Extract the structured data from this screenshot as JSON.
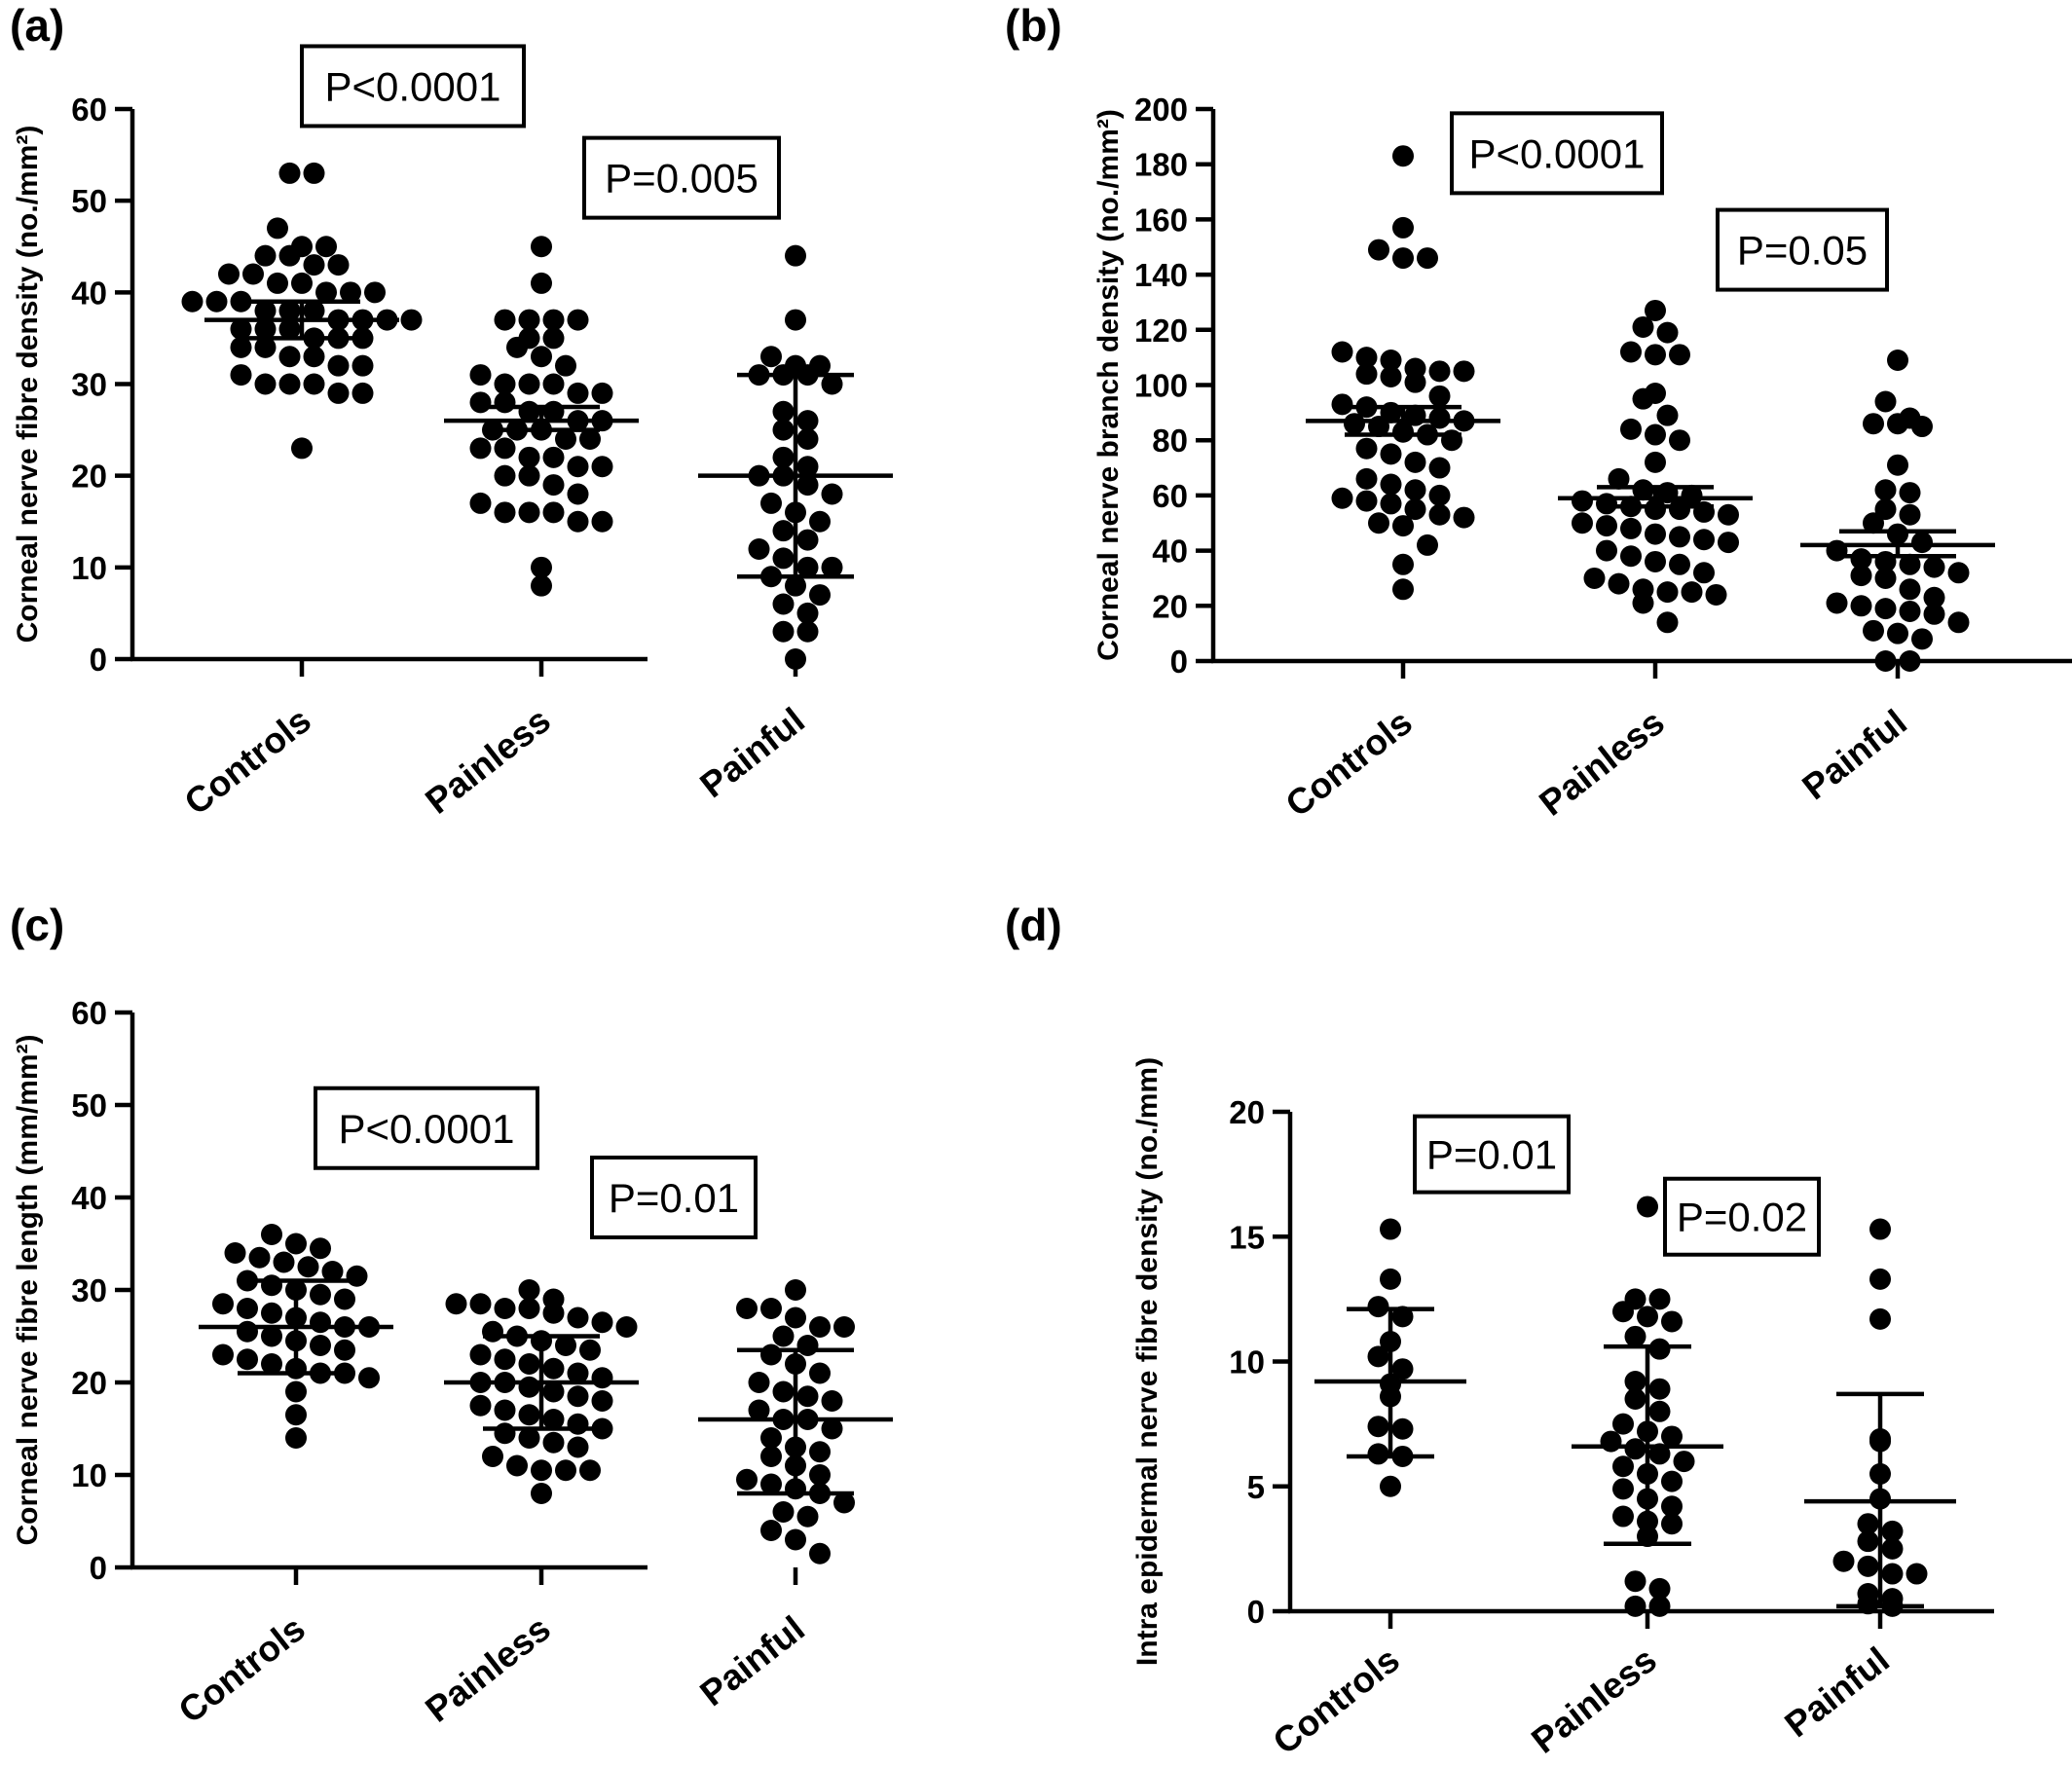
{
  "chart_data": [
    {
      "type": "scatter",
      "panel": "(a)",
      "ylabel": "Corneal nerve fibre density (no./mm²)",
      "ylim": [
        0,
        60
      ],
      "yticks": [
        0,
        10,
        20,
        30,
        40,
        50,
        60
      ],
      "categories": [
        "Controls",
        "Painless",
        "Painful"
      ],
      "series": [
        {
          "category": "Controls",
          "mean": 37,
          "err_low": 35,
          "err_high": 39,
          "values": [
            53,
            53,
            47,
            45,
            45,
            44,
            44,
            43,
            43,
            42,
            42,
            41,
            41,
            40,
            40,
            40,
            39,
            39,
            39,
            38,
            38,
            38,
            37,
            37,
            37,
            37,
            36,
            36,
            36,
            35,
            35,
            35,
            34,
            34,
            33,
            33,
            32,
            32,
            31,
            30,
            30,
            30,
            29,
            29,
            23
          ]
        },
        {
          "category": "Painless",
          "mean": 26,
          "err_low": 25,
          "err_high": 27.5,
          "values": [
            45,
            41,
            37,
            37,
            37,
            37,
            35,
            35,
            34,
            33,
            32,
            31,
            30,
            30,
            30,
            29,
            29,
            28,
            28,
            27,
            27,
            26,
            26,
            25,
            25,
            25,
            24,
            24,
            23,
            23,
            22,
            22,
            21,
            21,
            20,
            20,
            19,
            18,
            17,
            16,
            16,
            16,
            15,
            15,
            10,
            8
          ]
        },
        {
          "category": "Painful",
          "mean": 20,
          "err_low": 9,
          "err_high": 31,
          "values": [
            44,
            37,
            33,
            32,
            32,
            31,
            31,
            31,
            30,
            27,
            26,
            25,
            24,
            22,
            21,
            20,
            20,
            19,
            18,
            17,
            16,
            15,
            14,
            13,
            12,
            11,
            10,
            10,
            9,
            8,
            7,
            6,
            5,
            3,
            3,
            0
          ]
        }
      ],
      "annotations": [
        {
          "text": "P<0.0001",
          "y": 62.5
        },
        {
          "text": "P=0.005",
          "y": 52.5
        }
      ]
    },
    {
      "type": "scatter",
      "panel": "(b)",
      "ylabel": "Corneal nerve branch density (no./mm²)",
      "ylim": [
        0,
        200
      ],
      "yticks": [
        0,
        20,
        40,
        60,
        80,
        100,
        120,
        140,
        160,
        180,
        200
      ],
      "categories": [
        "Controls",
        "Painless",
        "Painful"
      ],
      "series": [
        {
          "category": "Controls",
          "mean": 87,
          "err_low": 82,
          "err_high": 92,
          "values": [
            183,
            157,
            149,
            146,
            146,
            112,
            110,
            109,
            106,
            105,
            105,
            104,
            103,
            101,
            96,
            93,
            92,
            90,
            89,
            88,
            87,
            86,
            85,
            83,
            82,
            80,
            77,
            75,
            72,
            70,
            66,
            64,
            62,
            60,
            59,
            58,
            57,
            55,
            53,
            52,
            50,
            49,
            42,
            35,
            26
          ]
        },
        {
          "category": "Painless",
          "mean": 59,
          "err_low": 56,
          "err_high": 63,
          "values": [
            127,
            121,
            119,
            112,
            111,
            111,
            97,
            95,
            89,
            84,
            82,
            80,
            72,
            66,
            62,
            61,
            60,
            58,
            57,
            56,
            55,
            55,
            54,
            53,
            50,
            49,
            48,
            46,
            45,
            44,
            43,
            40,
            38,
            36,
            35,
            32,
            30,
            28,
            26,
            25,
            25,
            24,
            21,
            14
          ]
        },
        {
          "category": "Painful",
          "mean": 42,
          "err_low": 38,
          "err_high": 47,
          "values": [
            109,
            94,
            88,
            86,
            86,
            85,
            71,
            62,
            61,
            55,
            53,
            50,
            46,
            43,
            40,
            37,
            36,
            35,
            34,
            32,
            31,
            30,
            26,
            23,
            21,
            20,
            19,
            18,
            17,
            14,
            11,
            10,
            8,
            0,
            0
          ]
        }
      ],
      "annotations": [
        {
          "text": "P<0.0001",
          "y": 184
        },
        {
          "text": "P=0.05",
          "y": 149
        }
      ]
    },
    {
      "type": "scatter",
      "panel": "(c)",
      "ylabel": "Corneal nerve fibre length (mm/mm²)",
      "ylim": [
        0,
        60
      ],
      "yticks": [
        0,
        10,
        20,
        30,
        40,
        50,
        60
      ],
      "categories": [
        "Controls",
        "Painless",
        "Painful"
      ],
      "series": [
        {
          "category": "Controls",
          "mean": 26,
          "err_low": 21,
          "err_high": 31,
          "values": [
            36,
            35,
            34.5,
            34,
            33.5,
            33,
            32.5,
            32,
            31.5,
            31,
            30.5,
            30,
            29.5,
            29,
            28.5,
            28,
            27.5,
            27,
            26.5,
            26,
            26,
            25.5,
            25,
            24.5,
            24,
            23.5,
            23,
            22.5,
            22,
            21.5,
            21,
            21,
            20.5,
            19,
            16.5,
            14
          ]
        },
        {
          "category": "Painless",
          "mean": 20,
          "err_low": 15,
          "err_high": 25,
          "values": [
            30,
            29,
            28.5,
            28.5,
            28,
            28,
            27.5,
            27,
            26.5,
            26,
            25.5,
            25,
            24.5,
            24,
            23.5,
            23,
            22.5,
            22,
            21.5,
            21,
            20.5,
            20,
            20,
            19.5,
            19,
            18.5,
            18,
            17.5,
            17,
            16.5,
            16,
            15.5,
            15,
            14.5,
            14,
            13.5,
            13,
            12,
            11,
            10.5,
            10.5,
            10.5,
            8
          ]
        },
        {
          "category": "Painful",
          "mean": 16,
          "err_low": 8,
          "err_high": 23.5,
          "values": [
            30,
            28,
            28,
            27,
            26,
            26,
            25,
            24,
            23,
            22,
            21,
            20,
            19,
            18.5,
            18,
            17,
            16,
            16,
            15,
            14,
            13,
            12.5,
            12,
            11,
            10,
            9.5,
            9,
            8.5,
            8,
            7,
            6,
            5.5,
            4,
            3,
            1.5
          ]
        }
      ],
      "annotations": [
        {
          "text": "P<0.0001",
          "y": 47.5
        },
        {
          "text": "P=0.01",
          "y": 40
        }
      ]
    },
    {
      "type": "scatter",
      "panel": "(d)",
      "ylabel": "Intra epidermal nerve fibre density (no./mm)",
      "ylim": [
        0,
        20
      ],
      "yticks": [
        0,
        5,
        10,
        15,
        20
      ],
      "categories": [
        "Controls",
        "Painless",
        "Painful"
      ],
      "series": [
        {
          "category": "Controls",
          "mean": 9.2,
          "err_low": 6.2,
          "err_high": 12.1,
          "values": [
            15.3,
            13.3,
            12.2,
            11.8,
            10.8,
            10.2,
            9.7,
            9.1,
            8.6,
            7.4,
            7.3,
            6.3,
            6.2,
            5.0
          ]
        },
        {
          "category": "Painless",
          "mean": 6.6,
          "err_low": 2.7,
          "err_high": 10.6,
          "values": [
            16.2,
            12.5,
            12.5,
            12.0,
            11.8,
            11.6,
            11.0,
            10.5,
            9.2,
            8.9,
            8.5,
            8.0,
            7.5,
            7.2,
            7.0,
            6.8,
            6.5,
            6.3,
            6.0,
            5.8,
            5.5,
            5.2,
            4.9,
            4.5,
            4.2,
            3.8,
            3.6,
            3.5,
            3.0,
            1.2,
            0.9,
            0.2,
            0.2
          ]
        },
        {
          "category": "Painful",
          "mean": 4.4,
          "err_low": 0.2,
          "err_high": 8.7,
          "values": [
            15.3,
            13.3,
            11.7,
            6.9,
            6.8,
            5.5,
            4.5,
            3.5,
            3.2,
            2.8,
            2.5,
            2.0,
            1.8,
            1.5,
            1.5,
            0.7,
            0.5,
            0.3,
            0.2
          ]
        }
      ],
      "annotations": [
        {
          "text": "P=0.01",
          "y": 18.3
        },
        {
          "text": "P=0.02",
          "y": 15.8
        }
      ]
    }
  ]
}
